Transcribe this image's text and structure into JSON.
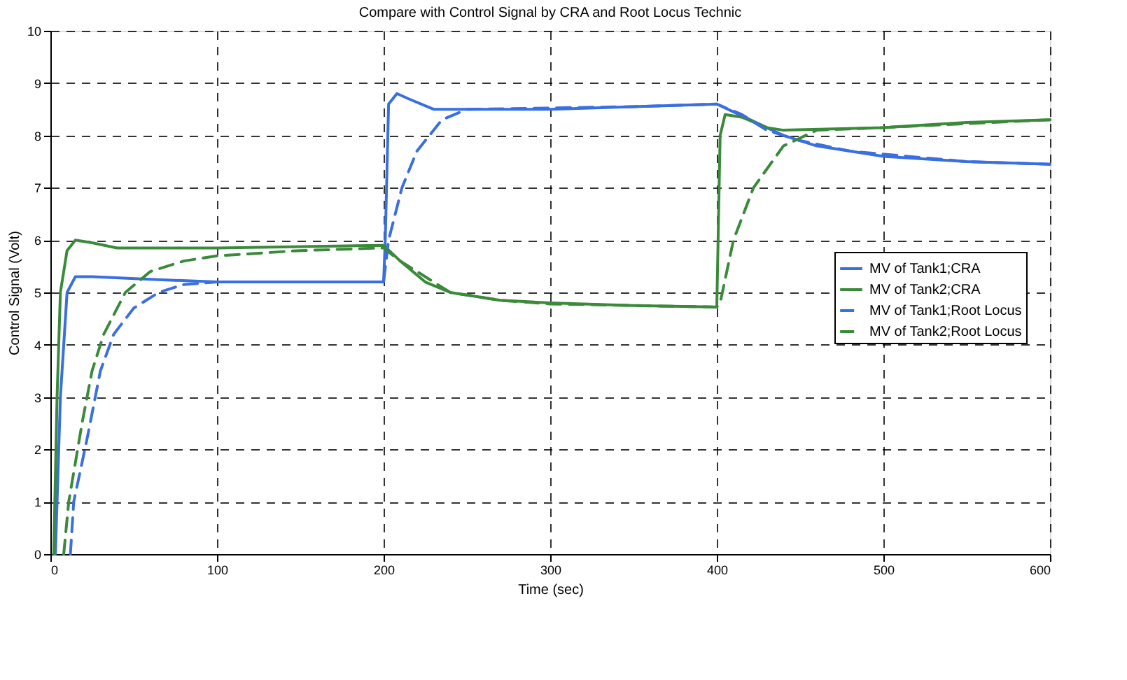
{
  "chart_data": {
    "type": "line",
    "title": "Compare with Control Signal by CRA and Root Locus Technic",
    "xlabel": "Time (sec)",
    "ylabel": "Control Signal (Volt)",
    "xlim": [
      0,
      600
    ],
    "xticks": [
      0,
      100,
      200,
      300,
      400,
      500,
      600
    ],
    "ylim": [
      0,
      10
    ],
    "yticks": [
      0,
      1,
      2,
      3,
      4,
      5,
      6,
      7,
      8,
      9,
      10
    ],
    "grid": true,
    "legend": "right",
    "marker": "none",
    "series": [
      {
        "name": "MV of Tank1;CRA",
        "color": "#3a6fe0",
        "line_style": "solid",
        "x": [
          3,
          6,
          10,
          15,
          25,
          60,
          100,
          200,
          201,
          203,
          208,
          215,
          230,
          300,
          350,
          400,
          420,
          440,
          460,
          500,
          550,
          600
        ],
        "values": [
          0,
          3,
          5,
          5.3,
          5.3,
          5.25,
          5.2,
          5.2,
          6,
          8.6,
          8.8,
          8.7,
          8.5,
          8.5,
          8.55,
          8.6,
          8.3,
          8.0,
          7.8,
          7.6,
          7.5,
          7.45
        ]
      },
      {
        "name": "MV of Tank2;CRA",
        "color": "#3a8a3a",
        "line_style": "solid",
        "x": [
          2,
          4,
          6,
          10,
          15,
          25,
          40,
          100,
          200,
          210,
          225,
          240,
          270,
          300,
          350,
          400,
          402,
          405,
          415,
          430,
          440,
          500,
          550,
          600
        ],
        "values": [
          0,
          3,
          5,
          5.8,
          6.0,
          5.95,
          5.85,
          5.85,
          5.9,
          5.6,
          5.2,
          5.0,
          4.85,
          4.8,
          4.75,
          4.72,
          8.0,
          8.4,
          8.35,
          8.15,
          8.1,
          8.15,
          8.25,
          8.3
        ]
      },
      {
        "name": "MV of Tank1;Root Locus",
        "color": "#3a6fe0",
        "line_style": "dashed",
        "x": [
          12,
          14,
          22,
          30,
          38,
          50,
          65,
          80,
          100,
          200,
          203,
          211,
          220,
          235,
          250,
          350,
          400,
          415,
          430,
          450,
          480,
          550,
          600
        ],
        "values": [
          0,
          1,
          2.2,
          3.5,
          4.2,
          4.7,
          5.0,
          5.15,
          5.2,
          5.2,
          6,
          7,
          7.7,
          8.3,
          8.5,
          8.55,
          8.6,
          8.4,
          8.1,
          7.9,
          7.7,
          7.5,
          7.45
        ]
      },
      {
        "name": "MV of Tank2;Root Locus",
        "color": "#3a8a3a",
        "line_style": "dashed",
        "x": [
          8,
          11,
          19,
          25,
          32,
          45,
          60,
          80,
          100,
          150,
          200,
          210,
          225,
          240,
          270,
          300,
          400,
          402,
          410,
          422,
          440,
          460,
          500,
          600
        ],
        "values": [
          0,
          1,
          2.5,
          3.5,
          4.2,
          5.0,
          5.4,
          5.6,
          5.7,
          5.8,
          5.85,
          5.6,
          5.3,
          5.0,
          4.85,
          4.78,
          4.72,
          4.8,
          6,
          7,
          7.8,
          8.1,
          8.15,
          8.3
        ]
      }
    ]
  }
}
